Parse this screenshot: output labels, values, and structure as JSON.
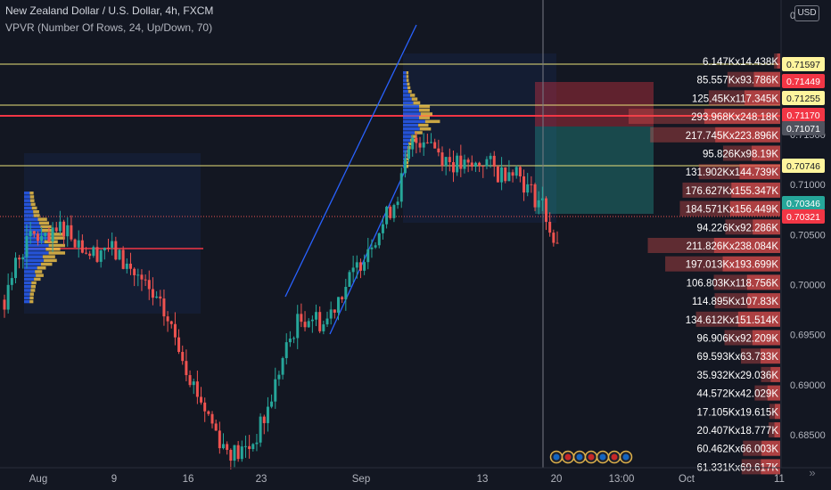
{
  "header": {
    "title": "New Zealand Dollar / U.S. Dollar, 4h, FXCM",
    "indicator": "VPVR (Number Of Rows, 24, Up/Down, 70)"
  },
  "currency_button": "USD",
  "colors": {
    "background": "#131722",
    "up": "#26a69a",
    "down": "#ef5350",
    "level_line": "#e8e07a",
    "red_line": "#f23645",
    "channel": "#2962ff",
    "vp_up": "#2962ff",
    "vp_down": "#f7c948"
  },
  "chart_data": {
    "type": "candlestick",
    "y_axis_ticks": [
      "0.71500",
      "0.71000",
      "0.70500",
      "0.70000",
      "0.69500",
      "0.69000",
      "0.68500"
    ],
    "y_axis_top_label": "0",
    "x_axis_ticks": [
      "Aug",
      "9",
      "16",
      "23",
      "Sep",
      "13",
      "20",
      "13:00",
      "Oct",
      "11"
    ],
    "price_labels": [
      {
        "value": "0.71597",
        "kind": "level"
      },
      {
        "value": "0.71449",
        "kind": "red"
      },
      {
        "value": "0.71255",
        "kind": "level"
      },
      {
        "value": "0.71170",
        "kind": "red"
      },
      {
        "value": "0.71071",
        "kind": "grey"
      },
      {
        "value": "0.70746",
        "kind": "level"
      },
      {
        "value": "0.70346",
        "kind": "teal"
      },
      {
        "value": "0.70321",
        "kind": "red"
      }
    ],
    "volume_profile_rows": [
      "6.147Kx14.438K",
      "85.557Kx93.786K",
      "125.45Kx117.345K",
      "293.968Kx248.18K",
      "217.745Kx223.896K",
      "95.826Kx98.19K",
      "131.902Kx144.739K",
      "176.627Kx155.347K",
      "184.571Kx156.449K",
      "94.226Kx92.286K",
      "211.826Kx238.084K",
      "197.013Kx193.699K",
      "106.803Kx118.756K",
      "114.895Kx107.83K",
      "134.612Kx151.514K",
      "96.906Kx92.209K",
      "69.593Kx63.733K",
      "35.932Kx29.036K",
      "44.572Kx42.029K",
      "17.105Kx19.615K",
      "20.407Kx18.777K",
      "60.462Kx66.003K",
      "61.331Kx69.617K"
    ],
    "close_path": [
      0.6985,
      0.703,
      0.705,
      0.704,
      0.706,
      0.7045,
      0.703,
      0.704,
      0.7025,
      0.701,
      0.699,
      0.697,
      0.694,
      0.69,
      0.687,
      0.684,
      0.683,
      0.684,
      0.687,
      0.692,
      0.696,
      0.697,
      0.696,
      0.699,
      0.701,
      0.704,
      0.706,
      0.709,
      0.714,
      0.715,
      0.713,
      0.712,
      0.7115,
      0.7125,
      0.711,
      0.712,
      0.7095,
      0.708,
      0.7032
    ]
  }
}
